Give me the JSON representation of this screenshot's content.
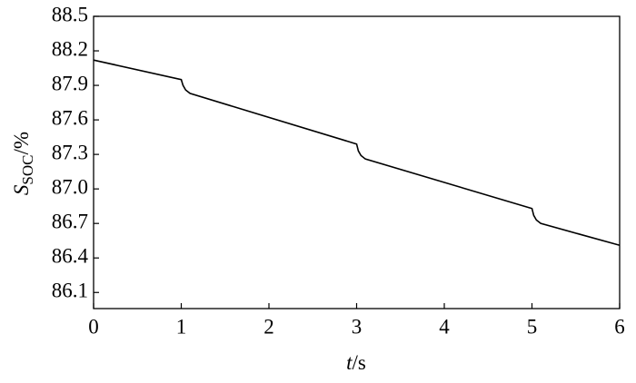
{
  "chart_data": {
    "type": "line",
    "xlabel": {
      "symbol": "t",
      "unit": "/s"
    },
    "ylabel": {
      "symbol": "S",
      "subscript": "SOC",
      "unit": "/%"
    },
    "x": [
      0,
      1,
      1.02,
      1.05,
      1.1,
      3,
      3.02,
      3.05,
      3.1,
      5,
      5.02,
      5.05,
      5.1,
      6
    ],
    "series": [
      {
        "color": "#000000",
        "values": [
          88.12,
          87.95,
          87.9,
          87.86,
          87.83,
          87.39,
          87.33,
          87.29,
          87.26,
          86.83,
          86.77,
          86.73,
          86.7,
          86.51
        ]
      }
    ],
    "xlim": [
      0,
      6
    ],
    "xticks": [
      0,
      1,
      2,
      3,
      4,
      5,
      6
    ],
    "ylim": [
      85.96,
      88.5
    ],
    "yticks": [
      {
        "value": 86.1,
        "label": "86.1"
      },
      86.4,
      86.7,
      {
        "value": 87,
        "label": "87.0"
      },
      87.3,
      87.6,
      87.9,
      88.2,
      88.5
    ],
    "grid": false
  }
}
